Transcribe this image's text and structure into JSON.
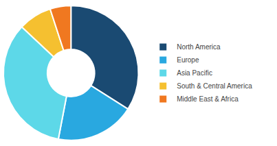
{
  "chart_data": {
    "type": "donut",
    "categories": [
      "North America",
      "Europe",
      "Asia Pacific",
      "South & Central America",
      "Middle East & Africa"
    ],
    "values": [
      34,
      19,
      34,
      8,
      5
    ],
    "colors": [
      "#1a4a72",
      "#29a8e0",
      "#5dd8e8",
      "#f5c030",
      "#f07820"
    ],
    "legend": "right"
  }
}
